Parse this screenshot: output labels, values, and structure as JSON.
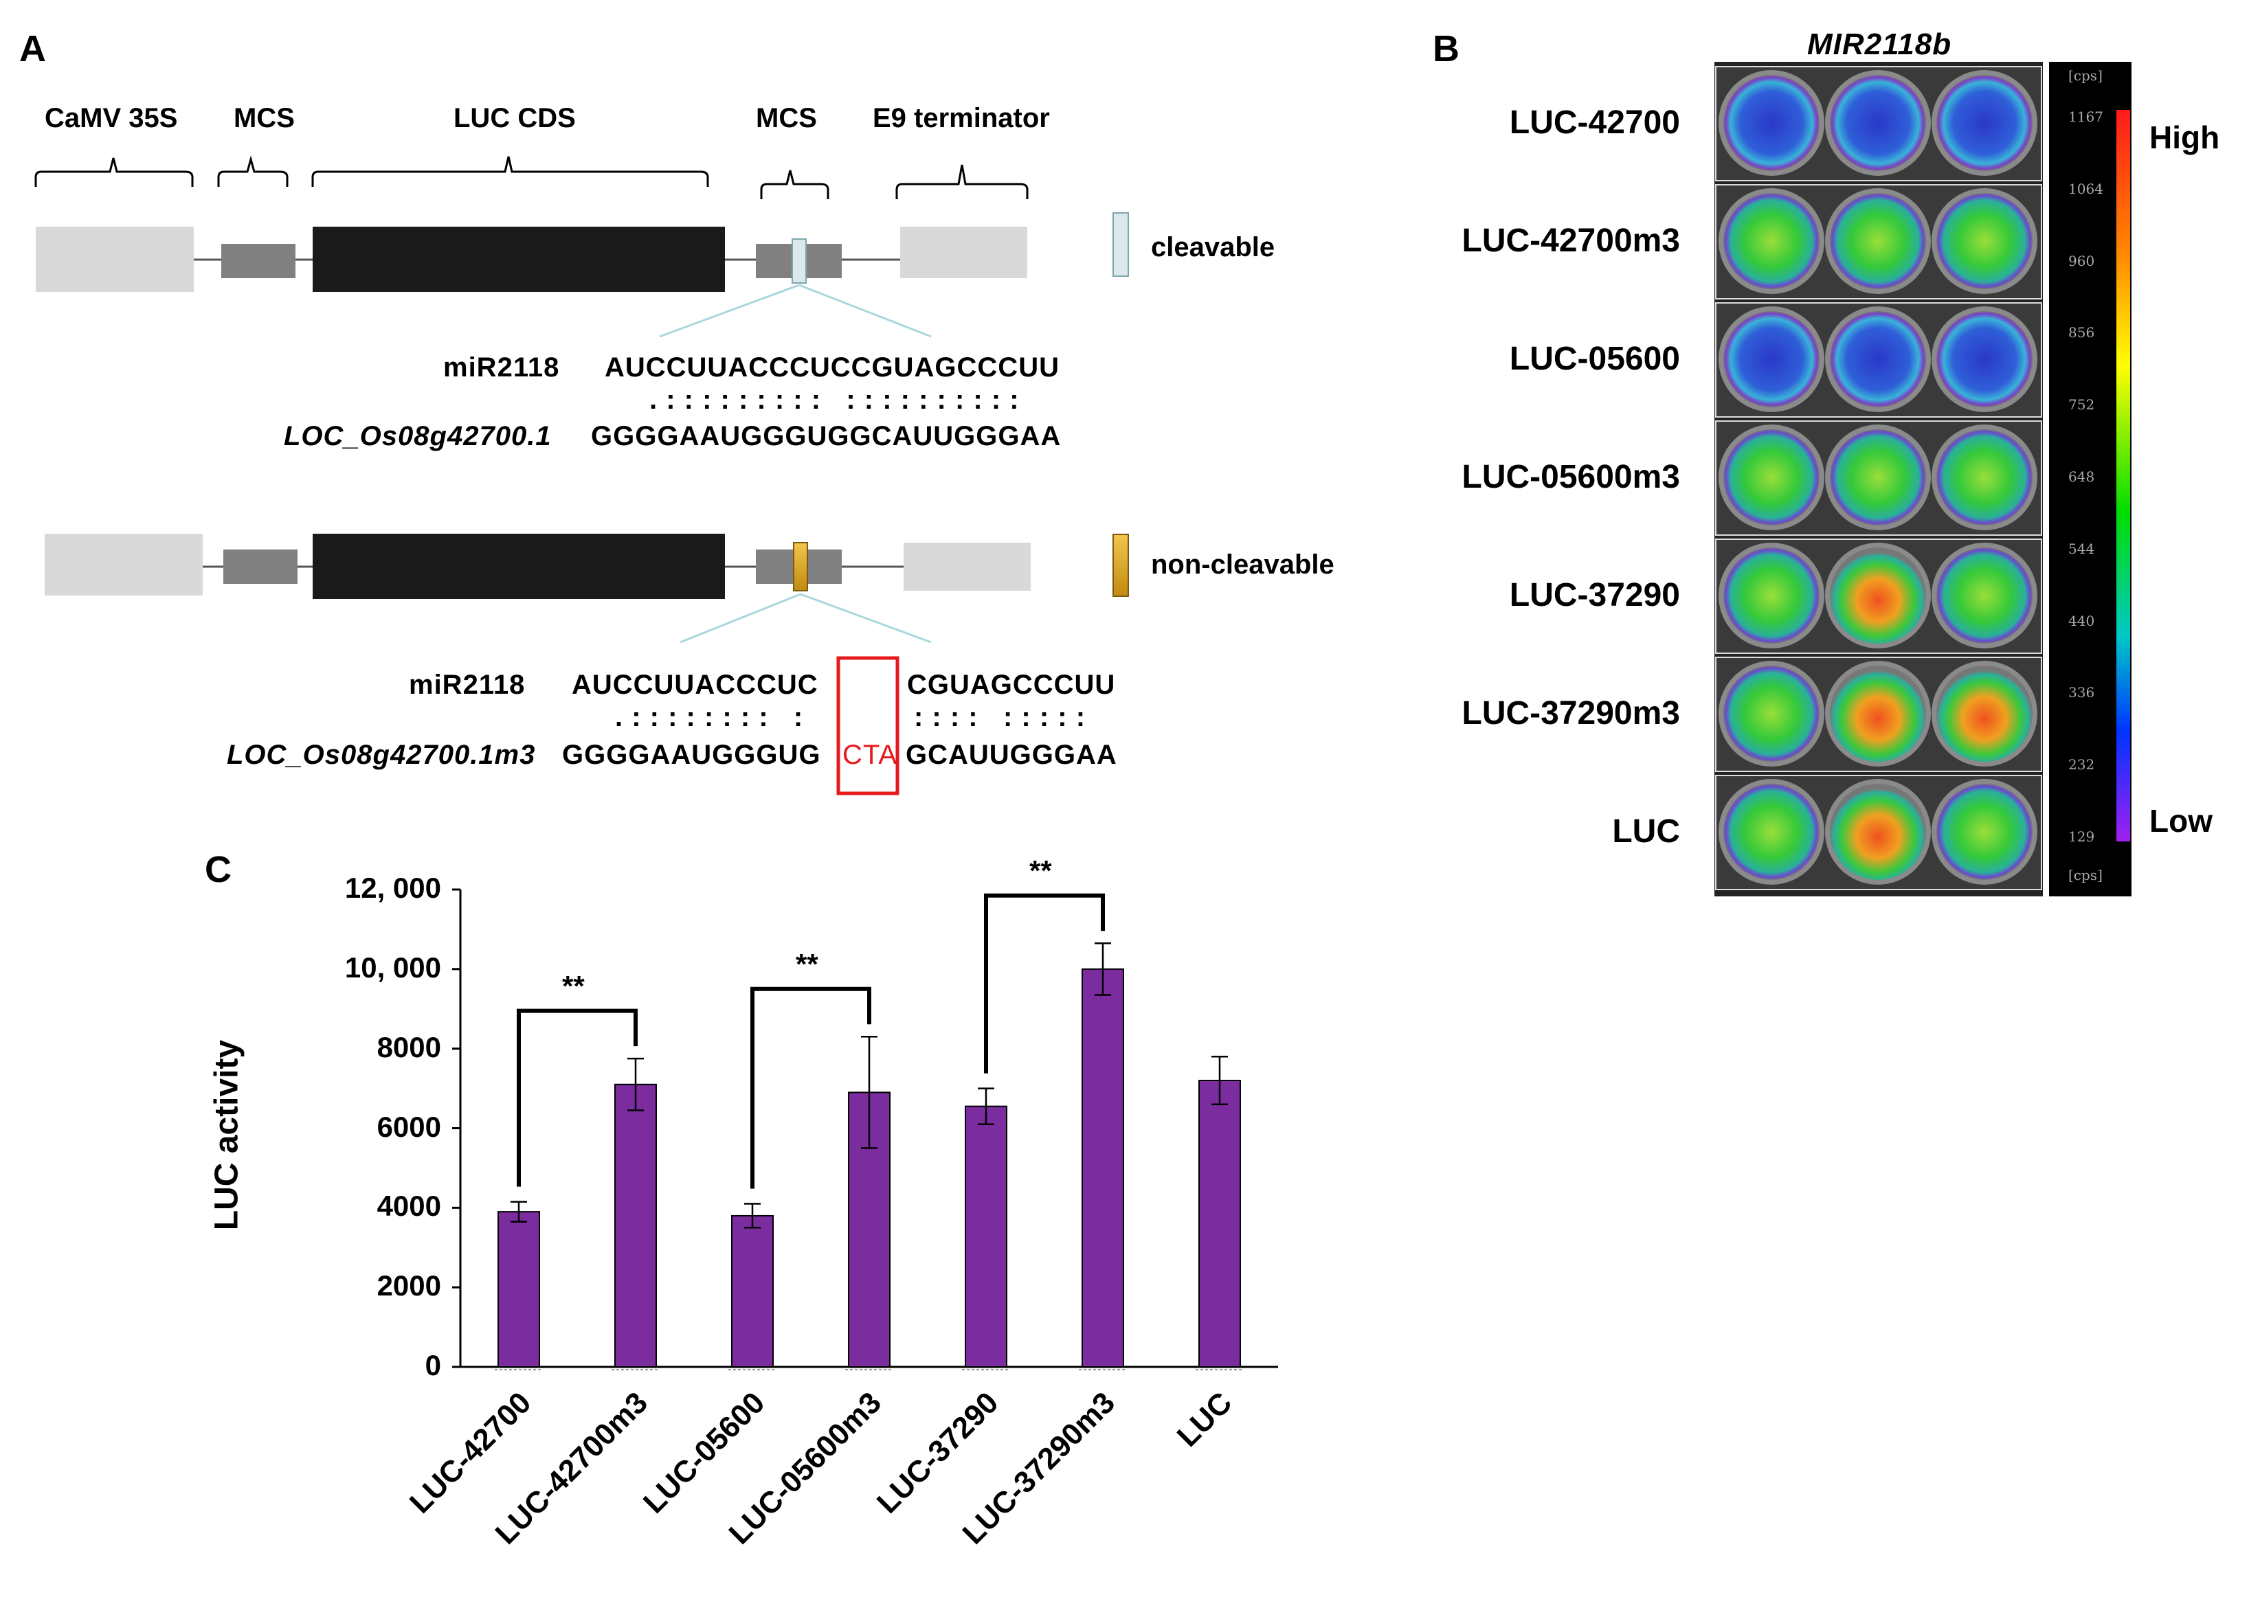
{
  "panel_a": {
    "letter": "A",
    "segments": {
      "camv": "CaMV 35S",
      "mcs1": "MCS",
      "luc": "LUC CDS",
      "mcs2": "MCS",
      "e9": "E9 terminator"
    },
    "legend_cleavable": "cleavable",
    "legend_noncleavable": "non-cleavable",
    "upper": {
      "mir_label": "miR2118",
      "mir_seq": "AUCCUUACCCUCCGUAGCCCUU",
      "pairing": ". : : : : : : : : :   : : : : : : : : : :",
      "target_label": "LOC_Os08g42700.1",
      "target_seq": "GGGGAAUGGGUGGCAUUGGGAA"
    },
    "lower": {
      "mir_label": "miR2118",
      "mir_seq_left": "AUCCUUACCCUC",
      "mir_seq_right": "CGUAGCCCUU",
      "pairing_left": ". : : : : : : : :   :",
      "pairing_right": ": : : :   : : : : :",
      "target_label": "LOC_Os08g42700.1m3",
      "target_seq_left": "GGGGAAUGGGUG",
      "mutation": "CTA",
      "target_seq_right": "GCAUUGGGAA"
    },
    "colors": {
      "light_box": "#d9d9d9",
      "mid_box": "#808080",
      "dark_box": "#1a1a1a",
      "mutation": "#e8191c",
      "cleavable": "#dce9ec",
      "noncleavable_top": "#f4c64c",
      "noncleavable_bottom": "#c28a10"
    }
  },
  "panel_b": {
    "letter": "B",
    "title": "MIR2118b",
    "rows": [
      "LUC-42700",
      "LUC-42700m3",
      "LUC-05600",
      "LUC-05600m3",
      "LUC-37290",
      "LUC-37290m3",
      "LUC"
    ],
    "colorbar_ticks": [
      "1167",
      "1064",
      "960",
      "856",
      "752",
      "648",
      "544",
      "440",
      "336",
      "232",
      "129"
    ],
    "colorbar_unit": "[cps]",
    "high_label": "High",
    "low_label": "Low"
  },
  "panel_c": {
    "letter": "C",
    "chart_data": {
      "type": "bar",
      "ylabel": "LUC activity",
      "xlabel": "",
      "categories": [
        "LUC-42700",
        "LUC-42700m3",
        "LUC-05600",
        "LUC-05600m3",
        "LUC-37290",
        "LUC-37290m3",
        "LUC"
      ],
      "values": [
        3900,
        7100,
        3800,
        6900,
        6550,
        10000,
        7200
      ],
      "errors": [
        250,
        650,
        300,
        1400,
        450,
        650,
        600
      ],
      "ylim": [
        0,
        12000
      ],
      "yticks": [
        "0",
        "2000",
        "4000",
        "6000",
        "8000",
        "10, 000",
        "12, 000"
      ],
      "ytick_values": [
        0,
        2000,
        4000,
        6000,
        8000,
        10000,
        12000
      ],
      "bar_color": "#7b2c9e",
      "significance": [
        {
          "from": 0,
          "to": 1,
          "label": "**"
        },
        {
          "from": 2,
          "to": 3,
          "label": "**"
        },
        {
          "from": 4,
          "to": 5,
          "label": "**"
        }
      ]
    }
  }
}
